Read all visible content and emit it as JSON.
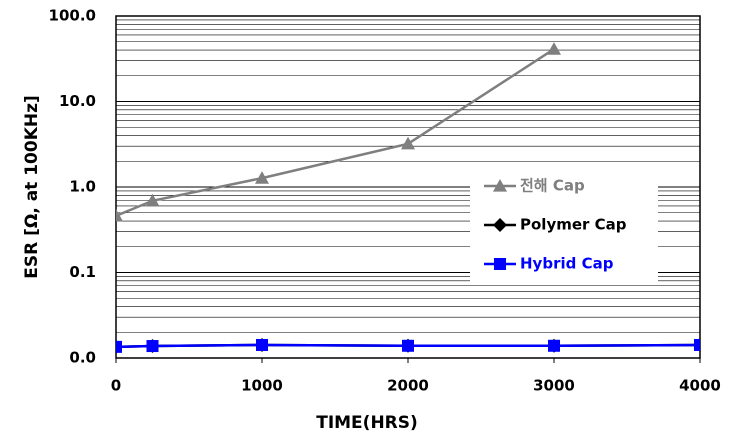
{
  "chart_data": {
    "type": "line",
    "x_label": "TIME(HRS)",
    "y_label": "ESR [Ω, at 100KHz]",
    "y_log": true,
    "grid": true,
    "minor_grid": true,
    "xlim": [
      0,
      4000
    ],
    "xticks": [
      0,
      1000,
      2000,
      3000,
      4000
    ],
    "ylim": [
      0.01,
      100
    ],
    "yticks": [
      {
        "value": 0.01,
        "label": "0.0"
      },
      {
        "value": 0.1,
        "label": "0.1"
      },
      {
        "value": 1,
        "label": "1.0"
      },
      {
        "value": 10,
        "label": "10.0"
      },
      {
        "value": 100,
        "label": "100.0"
      }
    ],
    "legend": "center-right",
    "series": [
      {
        "name": "전해 Cap",
        "color": "#7f7f7f",
        "marker": "triangle",
        "x": [
          0,
          250,
          1000,
          2000,
          3000
        ],
        "values": [
          0.46,
          0.69,
          1.27,
          3.2,
          41
        ]
      },
      {
        "name": "Polymer Cap",
        "color": "#000000",
        "marker": "diamond",
        "x": [
          0,
          250,
          1000,
          2000,
          3000,
          4000
        ],
        "values": [
          0.0135,
          0.0138,
          0.0142,
          0.0139,
          0.0139,
          0.0142
        ]
      },
      {
        "name": "Hybrid Cap",
        "color": "#0000ff",
        "marker": "square",
        "x": [
          0,
          250,
          1000,
          2000,
          3000,
          4000
        ],
        "values": [
          0.0135,
          0.0138,
          0.0142,
          0.0139,
          0.0139,
          0.0142
        ]
      }
    ]
  }
}
